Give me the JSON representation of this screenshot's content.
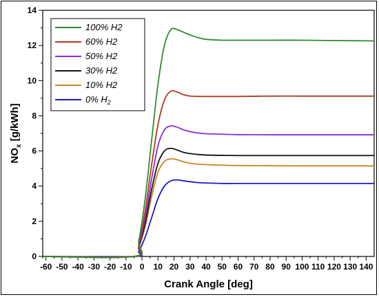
{
  "chart_data": {
    "type": "line",
    "xlabel": "Crank Angle [deg]",
    "ylabel_main": "NO",
    "ylabel_sub": "x",
    "ylabel_rest": " [g/kWh]",
    "xlim": [
      -62,
      145
    ],
    "ylim": [
      0,
      14
    ],
    "xticks": [
      -60,
      -50,
      -40,
      -30,
      -20,
      -10,
      0,
      10,
      20,
      30,
      40,
      50,
      60,
      70,
      80,
      90,
      100,
      110,
      120,
      130,
      140
    ],
    "yticks": [
      0,
      2,
      4,
      6,
      8,
      10,
      12,
      14
    ],
    "grid": false,
    "legend_position": "top-left",
    "series": [
      {
        "name": "100% H",
        "name_sub": "2",
        "sub_style": "inline",
        "color": "#2e8b2e",
        "x": [
          -62,
          -5,
          -2,
          2,
          6,
          10,
          14,
          18,
          22,
          26,
          30,
          35,
          40,
          50,
          60,
          80,
          100,
          120,
          145
        ],
        "y": [
          0,
          0,
          0.9,
          3.3,
          6.6,
          9.8,
          12.0,
          12.9,
          12.9,
          12.75,
          12.6,
          12.45,
          12.35,
          12.3,
          12.3,
          12.3,
          12.3,
          12.28,
          12.26
        ]
      },
      {
        "name": "60% H",
        "name_sub": "2",
        "sub_style": "inline",
        "color": "#b03a1e",
        "x": [
          -62,
          -5,
          -2,
          2,
          6,
          10,
          14,
          18,
          22,
          26,
          30,
          35,
          40,
          50,
          60,
          80,
          100,
          120,
          145
        ],
        "y": [
          0,
          0,
          0.7,
          2.6,
          5.2,
          7.5,
          8.9,
          9.4,
          9.35,
          9.2,
          9.12,
          9.1,
          9.1,
          9.1,
          9.1,
          9.12,
          9.12,
          9.12,
          9.12
        ]
      },
      {
        "name": "50% H",
        "name_sub": "2",
        "sub_style": "inline",
        "color": "#8a2be2",
        "x": [
          -62,
          -5,
          -2,
          2,
          6,
          10,
          14,
          18,
          22,
          26,
          30,
          35,
          40,
          50,
          60,
          80,
          100,
          120,
          145
        ],
        "y": [
          0,
          0,
          0.6,
          2.2,
          4.4,
          6.3,
          7.2,
          7.42,
          7.35,
          7.2,
          7.1,
          7.02,
          6.98,
          6.95,
          6.93,
          6.92,
          6.92,
          6.92,
          6.92
        ]
      },
      {
        "name": "30% H",
        "name_sub": "2",
        "sub_style": "inline",
        "color": "#111111",
        "x": [
          -62,
          -5,
          -2,
          2,
          6,
          10,
          14,
          18,
          22,
          26,
          30,
          35,
          40,
          50,
          60,
          80,
          100,
          120,
          145
        ],
        "y": [
          0,
          0,
          0.55,
          1.9,
          3.8,
          5.3,
          6.0,
          6.15,
          6.05,
          5.92,
          5.85,
          5.8,
          5.77,
          5.75,
          5.74,
          5.74,
          5.74,
          5.74,
          5.74
        ]
      },
      {
        "name": "10% H",
        "name_sub": "2",
        "sub_style": "inline",
        "color": "#c8861e",
        "x": [
          -62,
          -5,
          -2,
          2,
          6,
          10,
          14,
          18,
          22,
          26,
          30,
          35,
          40,
          50,
          60,
          80,
          100,
          120,
          145
        ],
        "y": [
          0,
          0,
          0.5,
          1.7,
          3.4,
          4.8,
          5.4,
          5.55,
          5.5,
          5.38,
          5.3,
          5.25,
          5.22,
          5.19,
          5.17,
          5.16,
          5.15,
          5.15,
          5.15
        ]
      },
      {
        "name": "0% H",
        "name_sub": "2",
        "sub_style": "subscript",
        "color": "#1a1acc",
        "x": [
          -62,
          -5,
          -2,
          2,
          6,
          10,
          14,
          18,
          22,
          26,
          30,
          35,
          40,
          50,
          60,
          80,
          100,
          120,
          145
        ],
        "y": [
          0,
          0,
          0.3,
          1.1,
          2.2,
          3.3,
          4.0,
          4.3,
          4.35,
          4.3,
          4.25,
          4.2,
          4.18,
          4.15,
          4.15,
          4.15,
          4.15,
          4.15,
          4.15
        ]
      }
    ]
  }
}
